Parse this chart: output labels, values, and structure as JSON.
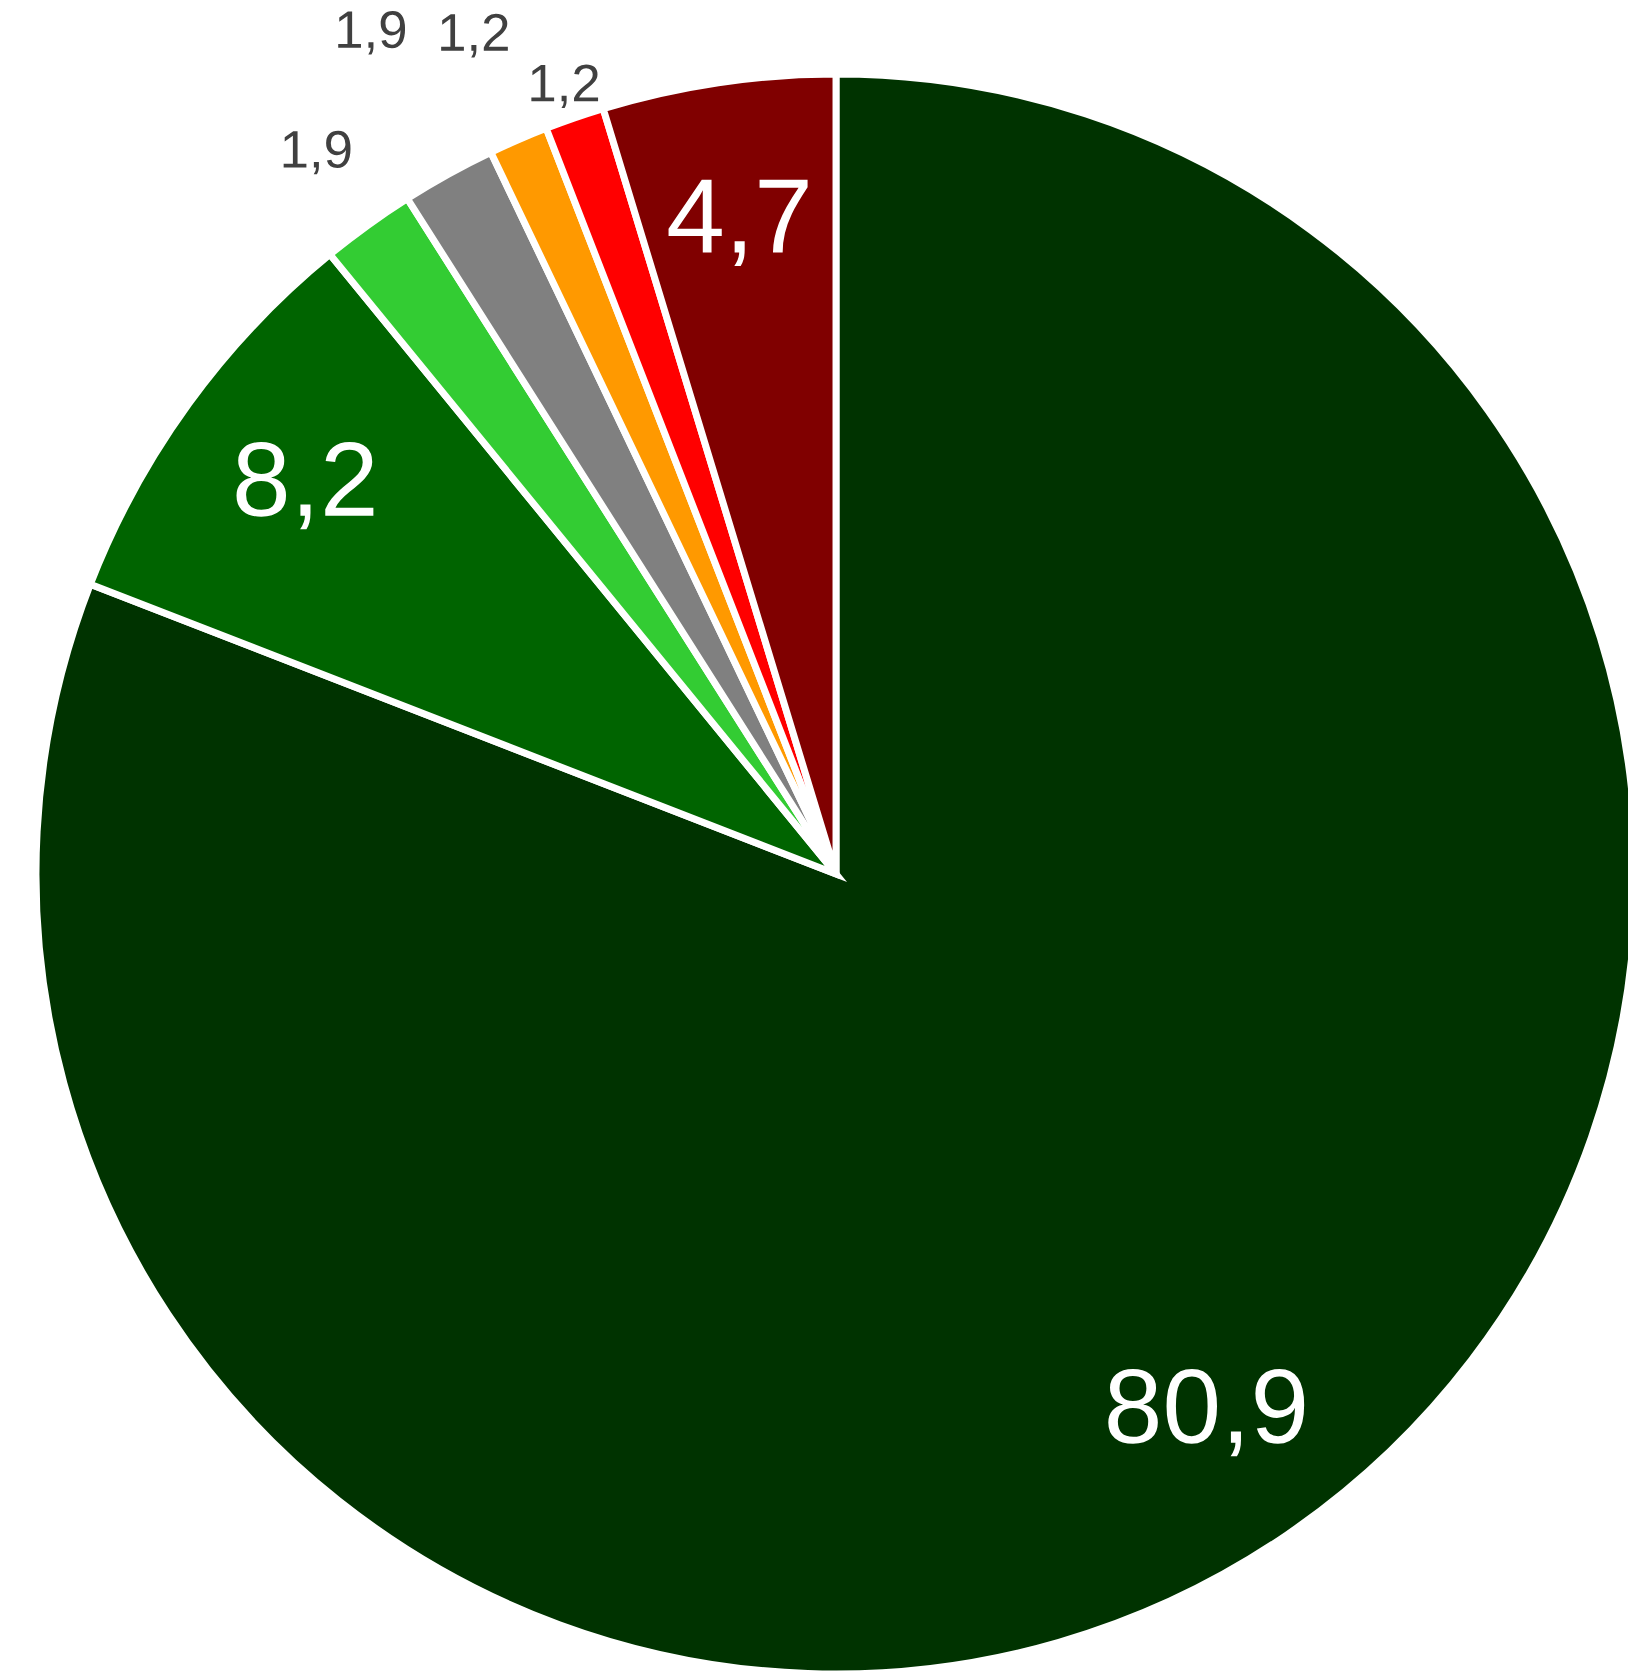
{
  "chart_data": {
    "type": "pie",
    "categories": [
      null,
      null,
      null,
      null,
      null,
      null,
      null
    ],
    "values": [
      80.9,
      8.2,
      1.9,
      1.9,
      1.2,
      1.2,
      4.7
    ],
    "value_labels": [
      "80,9",
      "8,2",
      "1,9",
      "1,9",
      "1,2",
      "1,2",
      "4,7"
    ],
    "colors": [
      "#003300",
      "#006400",
      "#33cc33",
      "#808080",
      "#ff9900",
      "#ff0000",
      "#800000"
    ],
    "legend": false
  }
}
